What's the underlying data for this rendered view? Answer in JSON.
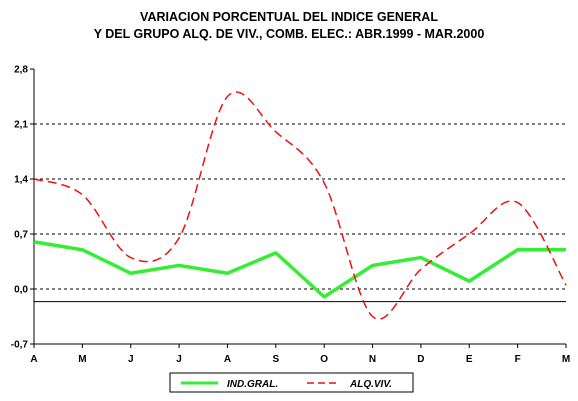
{
  "chart_data": {
    "type": "line",
    "title": "VARIACION PORCENTUAL DEL INDICE GENERAL",
    "subtitle": "Y DEL GRUPO ALQ. DE VIV., COMB.  ELEC.: ABR.1999 - MAR.2000",
    "categories": [
      "A",
      "M",
      "J",
      "J",
      "A",
      "S",
      "O",
      "N",
      "D",
      "E",
      "F",
      "M"
    ],
    "ylim": [
      -0.7,
      2.8
    ],
    "yticks": [
      "2,8",
      "2,1",
      "1,4",
      "0,7",
      "0,0",
      "-0,7"
    ],
    "ytick_values": [
      2.8,
      2.1,
      1.4,
      0.7,
      0.0,
      -0.7
    ],
    "grid": "horizontal dashed",
    "reference_line_y": -0.16,
    "legend_position": "bottom",
    "series": [
      {
        "name": "IND.GRAL.",
        "color": "#33ee33",
        "style": "solid",
        "smooth": false,
        "values": [
          0.6,
          0.5,
          0.2,
          0.3,
          0.2,
          0.46,
          -0.1,
          0.3,
          0.4,
          0.1,
          0.5,
          0.5
        ]
      },
      {
        "name": "ALQ.VIV.",
        "color": "#ee1111",
        "style": "dashed",
        "smooth": true,
        "values": [
          1.4,
          1.2,
          0.4,
          0.65,
          2.45,
          2.0,
          1.35,
          -0.35,
          0.25,
          0.7,
          1.1,
          0.05
        ]
      }
    ]
  }
}
